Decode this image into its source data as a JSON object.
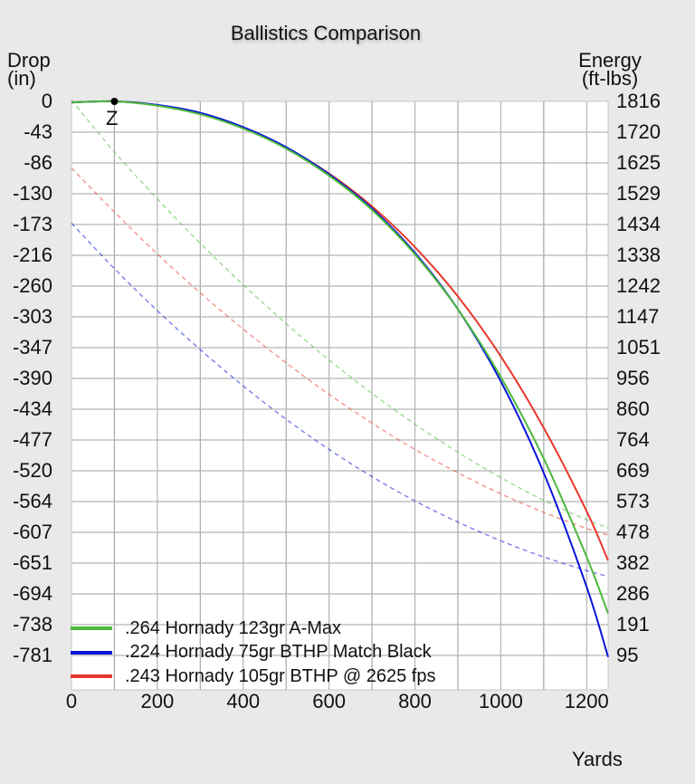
{
  "chart_data": {
    "type": "line",
    "title": "Ballistics Comparison",
    "xlabel": "Yards",
    "ylabel_left": "Drop (in)",
    "ylabel_right": "Energy (ft-lbs)",
    "xlim": [
      0,
      1250
    ],
    "ylim_left": [
      -824,
      0
    ],
    "ylim_right": [
      0,
      1816
    ],
    "grid": true,
    "x_ticks": [
      0,
      200,
      400,
      600,
      800,
      1000,
      1200
    ],
    "y_left_ticks": [
      0,
      -43,
      -86,
      -130,
      -173,
      -216,
      -260,
      -303,
      -347,
      -390,
      -434,
      -477,
      -520,
      -564,
      -607,
      -651,
      -694,
      -738,
      -781
    ],
    "y_right_ticks": [
      1816,
      1720,
      1625,
      1529,
      1434,
      1338,
      1242,
      1147,
      1051,
      956,
      860,
      764,
      669,
      573,
      478,
      382,
      286,
      191,
      95
    ],
    "zero_marker": {
      "label": "Z",
      "x": 100,
      "y": 0
    },
    "legend_position": "lower-left",
    "x": [
      0,
      100,
      200,
      300,
      400,
      500,
      600,
      700,
      800,
      900,
      1000,
      1100,
      1200,
      1250
    ],
    "series": [
      {
        "name": ".264 Hornady 123gr A-Max",
        "color": "#4cb83c",
        "drop": [
          -1.5,
          0,
          -6,
          -18,
          -38,
          -66,
          -104,
          -152,
          -214,
          -291,
          -386,
          -500,
          -638,
          -717
        ],
        "energy": [
          1820,
          1660,
          1515,
          1378,
          1250,
          1130,
          1018,
          915,
          820,
          733,
          655,
          585,
          525,
          500
        ]
      },
      {
        "name": ".224 Hornady 75gr BTHP Match Black",
        "color": "#0a14d8",
        "drop": [
          -1.5,
          0,
          -5,
          -16,
          -36,
          -64,
          -102,
          -150,
          -212,
          -291,
          -392,
          -520,
          -680,
          -778
        ],
        "energy": [
          1440,
          1300,
          1170,
          1050,
          938,
          835,
          742,
          658,
          583,
          518,
          460,
          410,
          368,
          350
        ]
      },
      {
        "name": ".243 Hornady 105gr BTHP @ 2625 fps",
        "color": "#e8382c",
        "drop": [
          -1.5,
          0,
          -5.5,
          -17,
          -37,
          -65,
          -101,
          -147,
          -204,
          -273,
          -357,
          -457,
          -574,
          -643
        ],
        "energy": [
          1610,
          1475,
          1345,
          1225,
          1113,
          1009,
          912,
          823,
          742,
          670,
          605,
          548,
          498,
          478
        ]
      }
    ]
  }
}
